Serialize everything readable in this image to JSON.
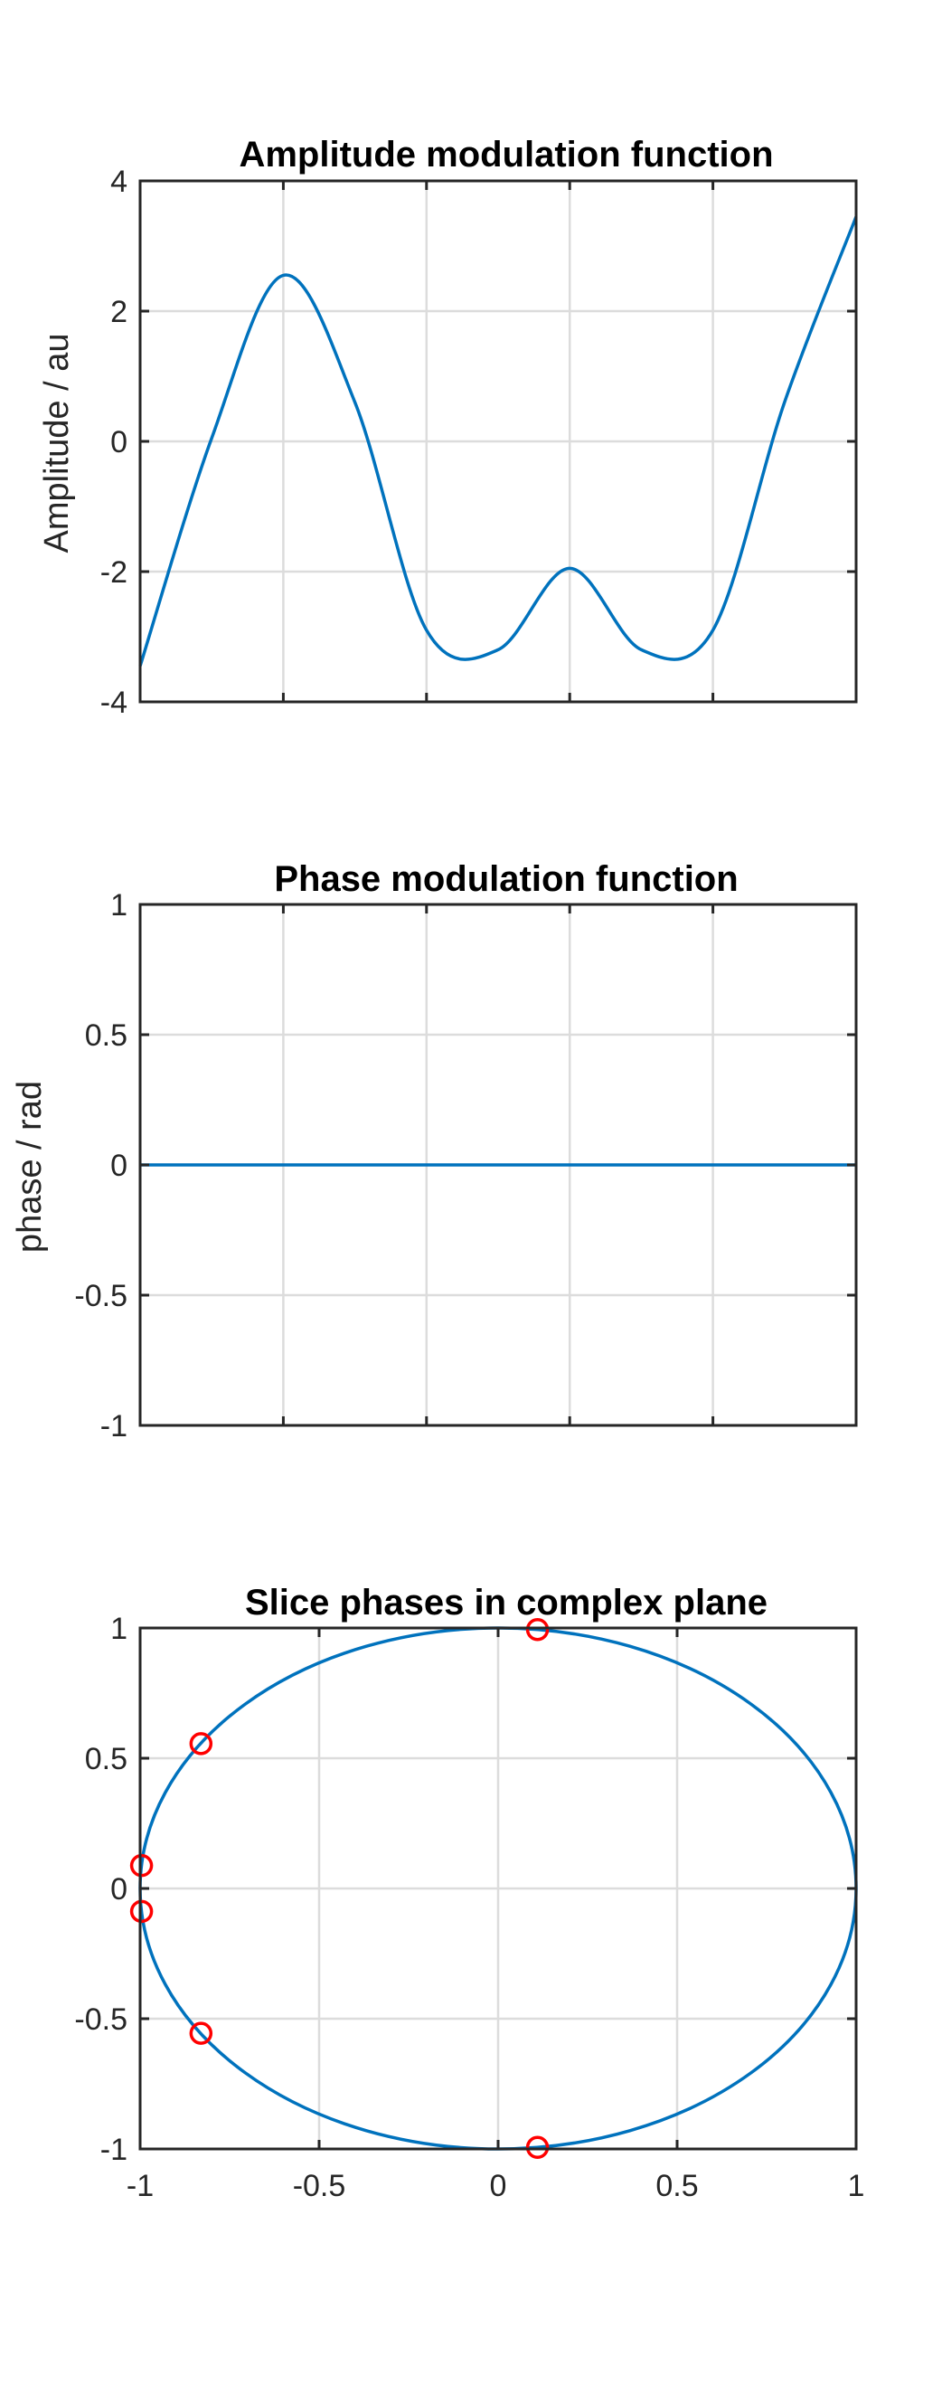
{
  "chart_data": [
    {
      "type": "line",
      "title": "Amplitude modulation function",
      "ylabel": "Amplitude / au",
      "xlim": [
        -1,
        1
      ],
      "ylim": [
        -4,
        4
      ],
      "x_ticks": [
        -1,
        -0.6,
        -0.2,
        0.2,
        0.6,
        1
      ],
      "x_tick_labels_visible": false,
      "y_ticks": [
        -4,
        -2,
        0,
        2,
        4
      ],
      "y_tick_labels": [
        "-4",
        "-2",
        "0",
        "2",
        "4"
      ],
      "grid": true,
      "series": [
        {
          "color": "#0072bd",
          "x": [
            -1.0,
            -0.8,
            -0.6,
            -0.4,
            -0.2,
            0.0,
            0.2,
            0.4,
            0.6,
            0.8,
            1.0
          ],
          "y": [
            -3.45,
            0.05,
            2.55,
            0.6,
            -2.9,
            -3.2,
            -1.95,
            -3.2,
            -2.9,
            0.6,
            3.45
          ]
        }
      ]
    },
    {
      "type": "line",
      "title": "Phase modulation function",
      "ylabel": "phase / rad",
      "xlim": [
        -1,
        1
      ],
      "ylim": [
        -1,
        1
      ],
      "x_ticks": [
        -1,
        -0.6,
        -0.2,
        0.2,
        0.6,
        1
      ],
      "x_tick_labels_visible": false,
      "y_ticks": [
        -1,
        -0.5,
        0,
        0.5,
        1
      ],
      "y_tick_labels": [
        "-1",
        "-0.5",
        "0",
        "0.5",
        "1"
      ],
      "grid": true,
      "series": [
        {
          "color": "#0072bd",
          "x": [
            -1,
            1
          ],
          "y": [
            0,
            0
          ]
        }
      ]
    },
    {
      "type": "scatter",
      "title": "Slice phases in complex plane",
      "xlim": [
        -1,
        1
      ],
      "ylim": [
        -1,
        1
      ],
      "x_ticks": [
        -1,
        -0.5,
        0,
        0.5,
        1
      ],
      "x_tick_labels": [
        "-1",
        "-0.5",
        "0",
        "0.5",
        "1"
      ],
      "y_ticks": [
        -1,
        -0.5,
        0,
        0.5,
        1
      ],
      "y_tick_labels": [
        "-1",
        "-0.5",
        "0",
        "0.5",
        "1"
      ],
      "grid": true,
      "unit_circle": {
        "color": "#0072bd"
      },
      "points": {
        "color": "#ff0000",
        "marker": "circle",
        "x": [
          0.11,
          -0.83,
          -0.996,
          -0.996,
          -0.83,
          0.11
        ],
        "y": [
          0.994,
          0.556,
          0.088,
          -0.088,
          -0.556,
          -0.994
        ]
      }
    }
  ]
}
